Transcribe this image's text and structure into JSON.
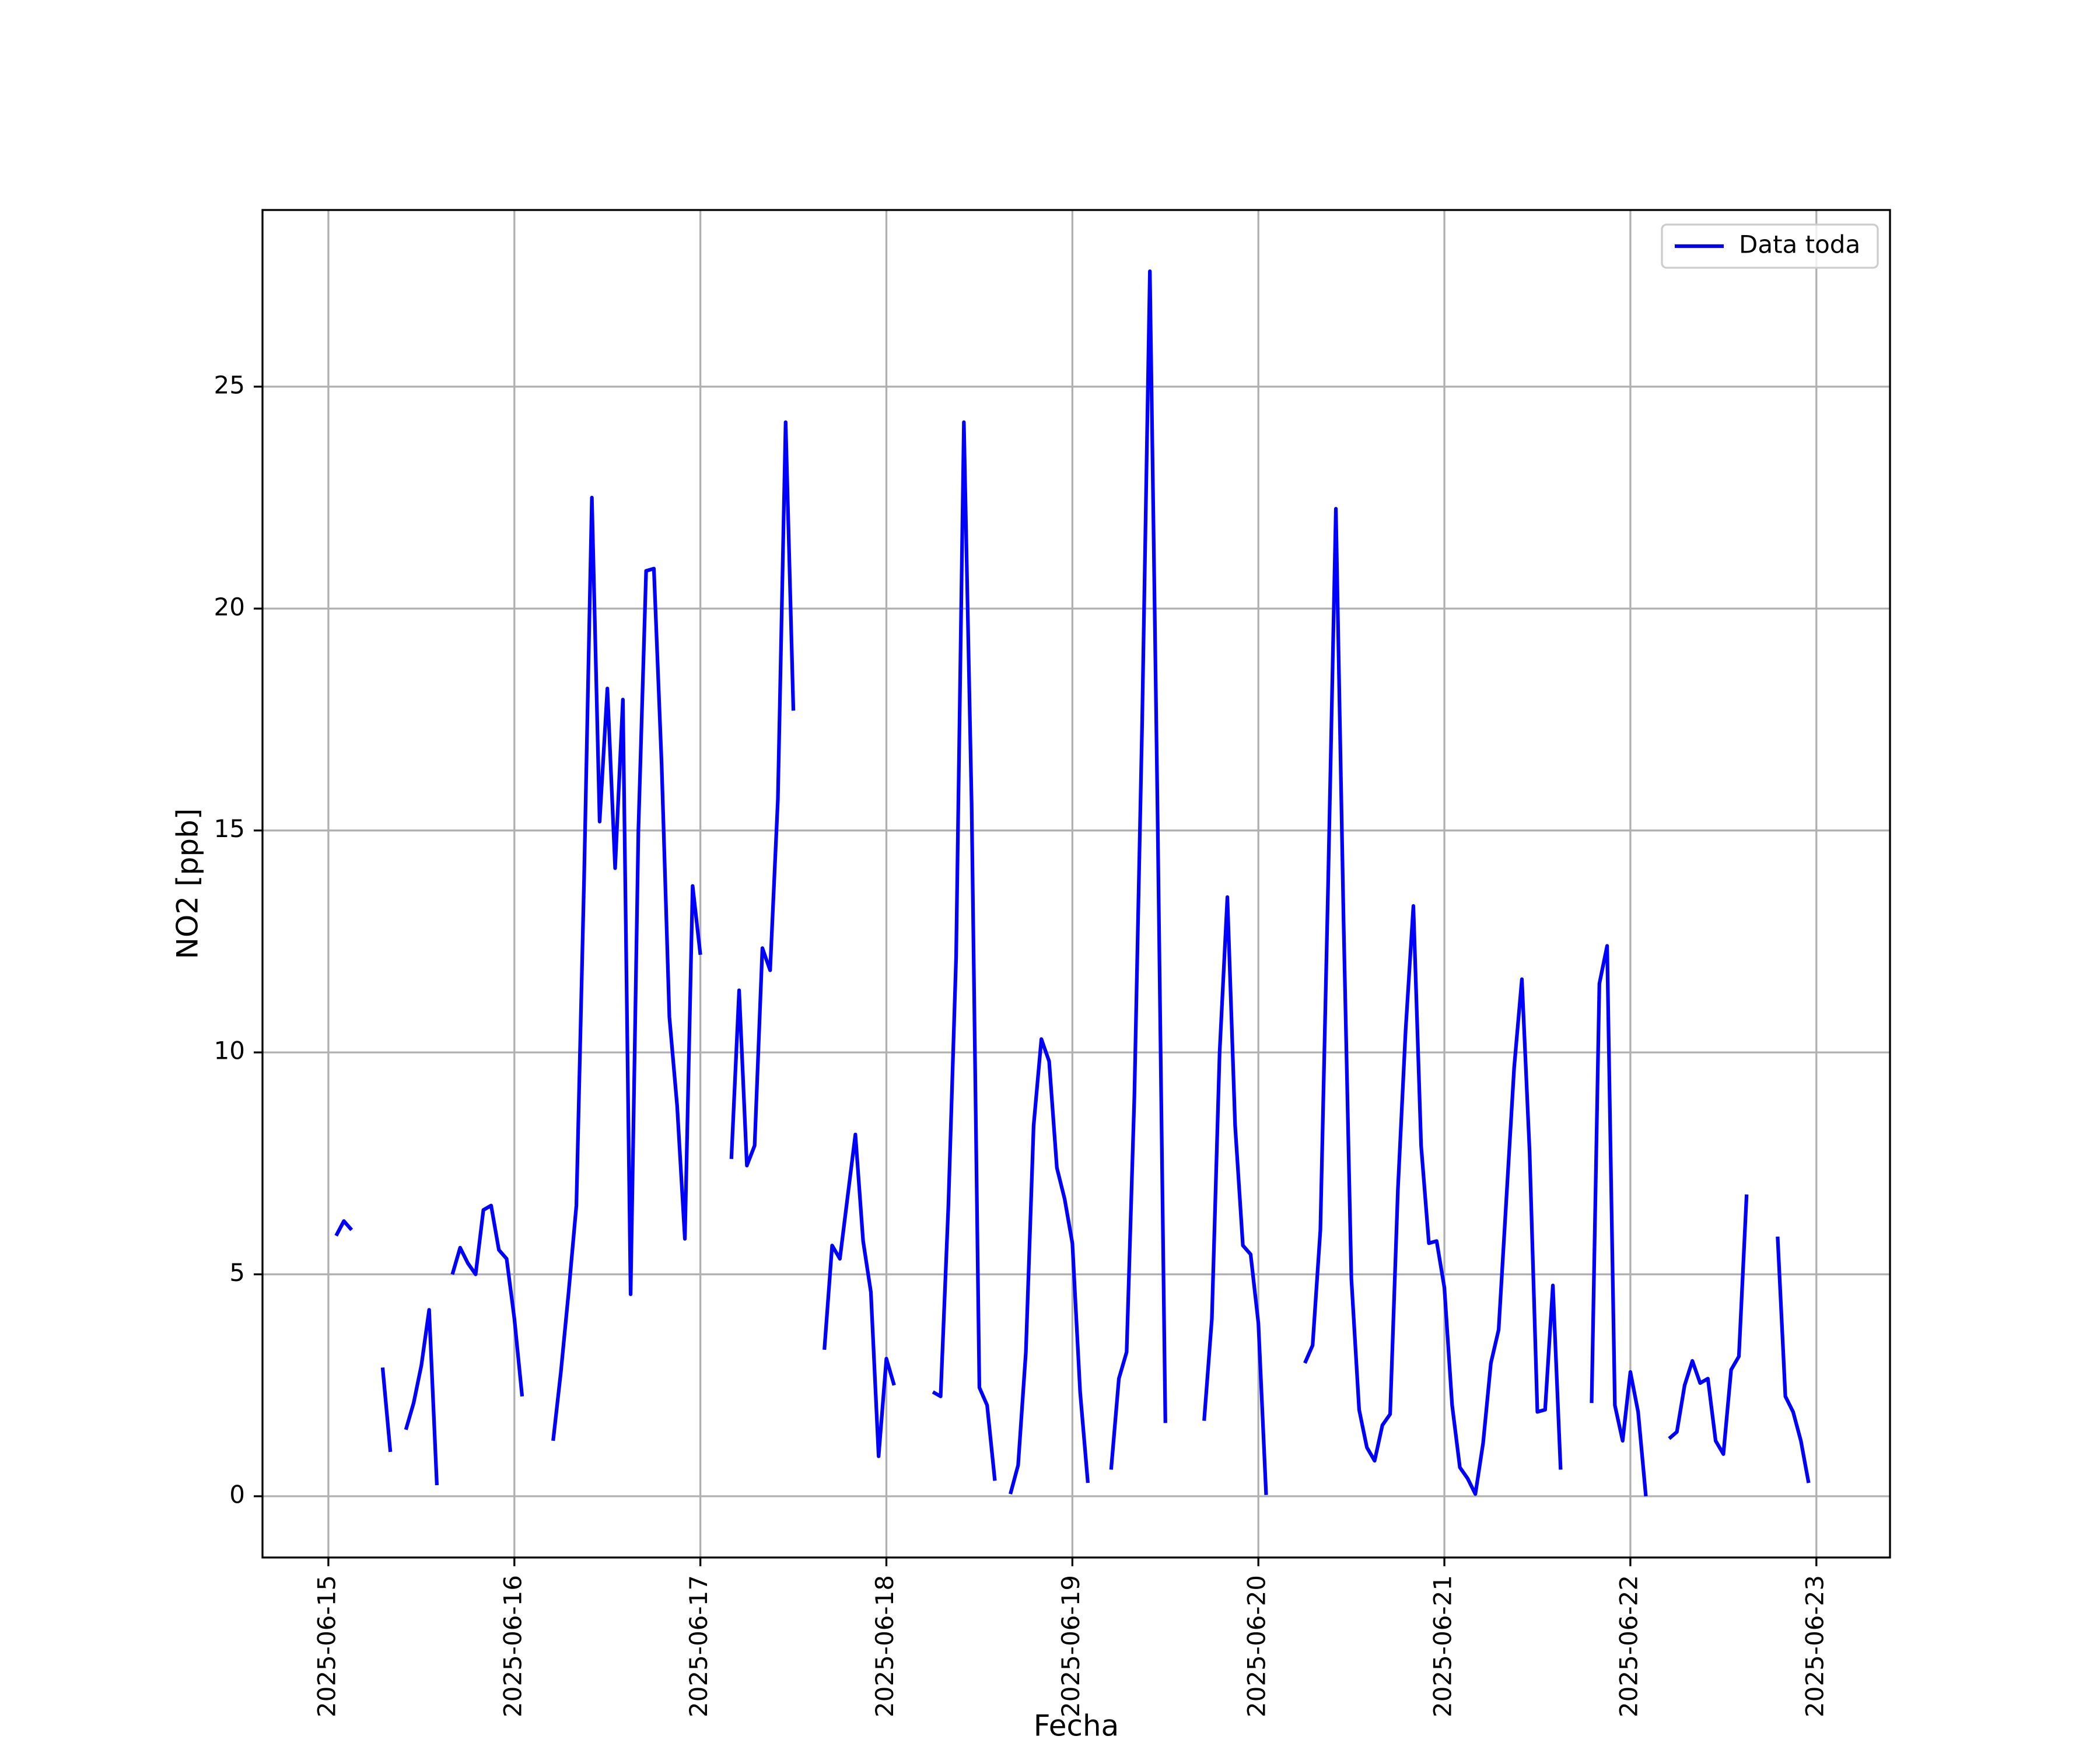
{
  "chart_data": {
    "type": "line",
    "xlabel": "Fecha",
    "ylabel": "NO2 [ppb]",
    "x": [
      "2025-06-15 01:00",
      "2025-06-15 02:00",
      "2025-06-15 03:00",
      "2025-06-15 04:00",
      "2025-06-15 07:00",
      "2025-06-15 08:00",
      "2025-06-15 09:00",
      "2025-06-15 10:00",
      "2025-06-15 11:00",
      "2025-06-15 12:00",
      "2025-06-15 13:00",
      "2025-06-15 14:00",
      "2025-06-15 15:00",
      "2025-06-15 16:00",
      "2025-06-15 17:00",
      "2025-06-15 18:00",
      "2025-06-15 19:00",
      "2025-06-15 20:00",
      "2025-06-15 21:00",
      "2025-06-15 22:00",
      "2025-06-15 23:00",
      "2025-06-16 00:00",
      "2025-06-16 01:00",
      "2025-06-16 02:00",
      "2025-06-16 05:00",
      "2025-06-16 06:00",
      "2025-06-16 07:00",
      "2025-06-16 08:00",
      "2025-06-16 09:00",
      "2025-06-16 10:00",
      "2025-06-16 11:00",
      "2025-06-16 12:00",
      "2025-06-16 13:00",
      "2025-06-16 14:00",
      "2025-06-16 15:00",
      "2025-06-16 16:00",
      "2025-06-16 17:00",
      "2025-06-16 18:00",
      "2025-06-16 19:00",
      "2025-06-16 20:00",
      "2025-06-16 21:00",
      "2025-06-16 22:00",
      "2025-06-16 23:00",
      "2025-06-17 00:00",
      "2025-06-17 01:00",
      "2025-06-17 04:00",
      "2025-06-17 05:00",
      "2025-06-17 06:00",
      "2025-06-17 07:00",
      "2025-06-17 08:00",
      "2025-06-17 09:00",
      "2025-06-17 10:00",
      "2025-06-17 11:00",
      "2025-06-17 12:00",
      "2025-06-17 13:00",
      "2025-06-17 16:00",
      "2025-06-17 17:00",
      "2025-06-17 18:00",
      "2025-06-17 19:00",
      "2025-06-17 20:00",
      "2025-06-17 21:00",
      "2025-06-17 22:00",
      "2025-06-17 23:00",
      "2025-06-18 00:00",
      "2025-06-18 01:00",
      "2025-06-18 02:00",
      "2025-06-18 06:00",
      "2025-06-18 07:00",
      "2025-06-18 08:00",
      "2025-06-18 09:00",
      "2025-06-18 10:00",
      "2025-06-18 11:00",
      "2025-06-18 12:00",
      "2025-06-18 13:00",
      "2025-06-18 14:00",
      "2025-06-18 15:00",
      "2025-06-18 16:00",
      "2025-06-18 17:00",
      "2025-06-18 18:00",
      "2025-06-18 19:00",
      "2025-06-18 20:00",
      "2025-06-18 21:00",
      "2025-06-18 22:00",
      "2025-06-18 23:00",
      "2025-06-19 00:00",
      "2025-06-19 01:00",
      "2025-06-19 02:00",
      "2025-06-19 03:00",
      "2025-06-19 05:00",
      "2025-06-19 06:00",
      "2025-06-19 07:00",
      "2025-06-19 08:00",
      "2025-06-19 09:00",
      "2025-06-19 10:00",
      "2025-06-19 11:00",
      "2025-06-19 12:00",
      "2025-06-19 13:00",
      "2025-06-19 17:00",
      "2025-06-19 18:00",
      "2025-06-19 19:00",
      "2025-06-19 20:00",
      "2025-06-19 21:00",
      "2025-06-19 22:00",
      "2025-06-19 23:00",
      "2025-06-20 00:00",
      "2025-06-20 01:00",
      "2025-06-20 02:00",
      "2025-06-20 06:00",
      "2025-06-20 07:00",
      "2025-06-20 08:00",
      "2025-06-20 09:00",
      "2025-06-20 10:00",
      "2025-06-20 11:00",
      "2025-06-20 12:00",
      "2025-06-20 13:00",
      "2025-06-20 14:00",
      "2025-06-20 15:00",
      "2025-06-20 16:00",
      "2025-06-20 17:00",
      "2025-06-20 18:00",
      "2025-06-20 19:00",
      "2025-06-20 20:00",
      "2025-06-20 21:00",
      "2025-06-20 22:00",
      "2025-06-20 23:00",
      "2025-06-21 00:00",
      "2025-06-21 01:00",
      "2025-06-21 02:00",
      "2025-06-21 03:00",
      "2025-06-21 04:00",
      "2025-06-21 05:00",
      "2025-06-21 06:00",
      "2025-06-21 07:00",
      "2025-06-21 08:00",
      "2025-06-21 09:00",
      "2025-06-21 10:00",
      "2025-06-21 11:00",
      "2025-06-21 12:00",
      "2025-06-21 13:00",
      "2025-06-21 14:00",
      "2025-06-21 15:00",
      "2025-06-21 16:00",
      "2025-06-21 19:00",
      "2025-06-21 20:00",
      "2025-06-21 21:00",
      "2025-06-21 22:00",
      "2025-06-21 23:00",
      "2025-06-22 00:00",
      "2025-06-22 01:00",
      "2025-06-22 02:00",
      "2025-06-22 03:00",
      "2025-06-22 05:00",
      "2025-06-22 06:00",
      "2025-06-22 07:00",
      "2025-06-22 08:00",
      "2025-06-22 09:00",
      "2025-06-22 10:00",
      "2025-06-22 11:00",
      "2025-06-22 12:00",
      "2025-06-22 13:00",
      "2025-06-22 14:00",
      "2025-06-22 15:00",
      "2025-06-22 16:00",
      "2025-06-22 19:00",
      "2025-06-22 20:00",
      "2025-06-22 21:00",
      "2025-06-22 22:00",
      "2025-06-22 23:00"
    ],
    "series": [
      {
        "name": "Data toda",
        "color": "#0000ff",
        "values": [
          5.87,
          6.2,
          6.0,
          null,
          2.9,
          1.0,
          null,
          1.5,
          2.1,
          2.95,
          4.2,
          0.25,
          null,
          5.0,
          5.6,
          5.25,
          5.0,
          6.45,
          6.55,
          5.55,
          5.35,
          4.0,
          2.25,
          null,
          1.25,
          2.8,
          4.6,
          6.55,
          13.95,
          22.5,
          15.2,
          18.2,
          14.15,
          17.95,
          4.55,
          15.0,
          20.85,
          20.9,
          16.5,
          10.8,
          8.8,
          5.8,
          13.75,
          12.2,
          null,
          7.6,
          11.4,
          7.45,
          7.9,
          12.35,
          11.85,
          15.7,
          24.2,
          17.7,
          null,
          3.3,
          5.65,
          5.35,
          6.75,
          8.15,
          5.75,
          4.6,
          0.9,
          3.1,
          2.5,
          null,
          2.35,
          2.25,
          6.55,
          12.15,
          24.2,
          15.6,
          2.45,
          2.05,
          0.35,
          null,
          0.05,
          0.7,
          3.25,
          8.35,
          10.3,
          9.8,
          7.4,
          6.7,
          5.7,
          2.35,
          0.3,
          null,
          0.6,
          2.65,
          3.25,
          9.0,
          17.4,
          27.6,
          15.3,
          1.65,
          null,
          1.7,
          4.0,
          10.0,
          13.5,
          8.35,
          5.65,
          5.45,
          3.9,
          0.03,
          null,
          3.0,
          3.4,
          6.0,
          13.8,
          22.25,
          12.9,
          4.9,
          1.95,
          1.1,
          0.8,
          1.6,
          1.85,
          6.9,
          10.5,
          13.3,
          7.9,
          5.7,
          5.75,
          4.7,
          2.05,
          0.65,
          0.4,
          0.05,
          1.2,
          3.0,
          3.75,
          6.7,
          9.65,
          11.65,
          7.75,
          1.9,
          1.95,
          4.75,
          0.6,
          null,
          2.1,
          11.55,
          12.4,
          2.05,
          1.25,
          2.8,
          1.9,
          0.0,
          null,
          1.3,
          1.45,
          2.5,
          3.05,
          2.55,
          2.65,
          1.25,
          0.95,
          2.85,
          3.15,
          6.8,
          null,
          5.85,
          2.25,
          1.9,
          1.25,
          0.3
        ]
      }
    ],
    "xlim": [
      "2025-06-14 15:30",
      "2025-06-23 09:30"
    ],
    "xticks": [
      "2025-06-15",
      "2025-06-16",
      "2025-06-17",
      "2025-06-18",
      "2025-06-19",
      "2025-06-20",
      "2025-06-21",
      "2025-06-22",
      "2025-06-23"
    ],
    "ylim": [
      -1.38,
      28.98
    ],
    "yticks": [
      0,
      5,
      10,
      15,
      20,
      25
    ],
    "grid": true,
    "legend": "upper right"
  }
}
